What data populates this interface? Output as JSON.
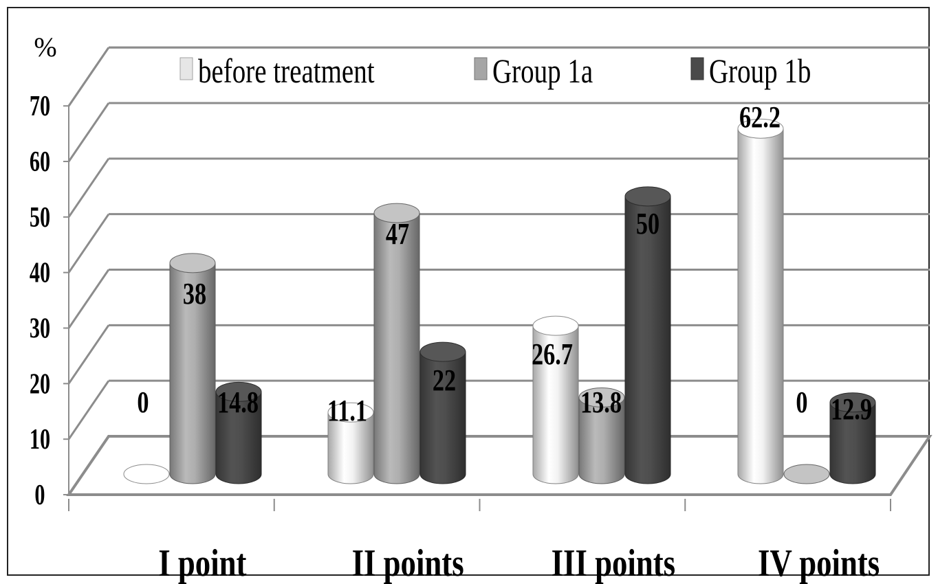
{
  "chart_data": {
    "type": "bar",
    "style": "3d-cylinder",
    "ylabel": "%",
    "ylim": [
      0,
      70
    ],
    "yticks": [
      0,
      10,
      20,
      30,
      40,
      50,
      60,
      70
    ],
    "grid": true,
    "legend_position": "top",
    "categories": [
      "I point",
      "II points",
      "III points",
      "IV points"
    ],
    "series": [
      {
        "name": "before treatment",
        "color": "#e6e6e6",
        "values": [
          0,
          11.1,
          26.7,
          62.2
        ]
      },
      {
        "name": "Group 1a",
        "color": "#a6a6a6",
        "values": [
          38,
          47,
          13.8,
          0
        ]
      },
      {
        "name": "Group 1b",
        "color": "#4a4a4a",
        "values": [
          14.8,
          22,
          50,
          12.9
        ]
      }
    ],
    "data_labels": [
      [
        "0",
        "11.1",
        "26.7",
        "62.2"
      ],
      [
        "38",
        "47",
        "13.8",
        "0"
      ],
      [
        "14.8",
        "22",
        "50",
        "12.9"
      ]
    ]
  }
}
